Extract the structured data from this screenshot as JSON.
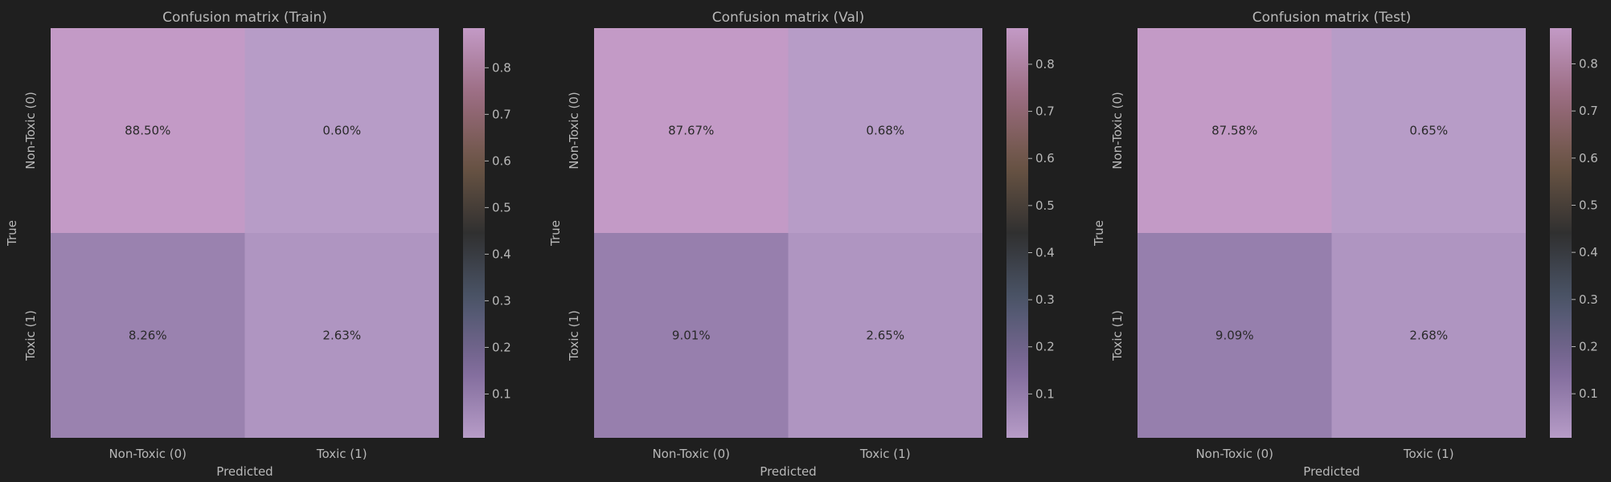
{
  "colors": {
    "background": "#1f1f1f",
    "text": "#b8b8b8",
    "cell_text": "#2a2a2a",
    "colormap": [
      "#b79cc7",
      "#7f6a9a",
      "#4c566a",
      "#303030",
      "#6b5544",
      "#9a6b80",
      "#c39ac6"
    ]
  },
  "chart_data": [
    {
      "type": "heatmap",
      "title": "Confusion matrix (Train)",
      "xlabel": "Predicted",
      "ylabel": "True",
      "x_categories": [
        "Non-Toxic (0)",
        "Toxic (1)"
      ],
      "y_categories": [
        "Non-Toxic (0)",
        "Toxic (1)"
      ],
      "values": [
        [
          0.885,
          0.006
        ],
        [
          0.0826,
          0.0263
        ]
      ],
      "cell_labels": [
        [
          "88.50%",
          "0.60%"
        ],
        [
          "8.26%",
          "2.63%"
        ]
      ],
      "colorbar": {
        "range": [
          0.006,
          0.885
        ],
        "ticks": [
          0.1,
          0.2,
          0.3,
          0.4,
          0.5,
          0.6,
          0.7,
          0.8
        ],
        "tick_labels": [
          "0.1",
          "0.2",
          "0.3",
          "0.4",
          "0.5",
          "0.6",
          "0.7",
          "0.8"
        ]
      }
    },
    {
      "type": "heatmap",
      "title": "Confusion matrix (Val)",
      "xlabel": "Predicted",
      "ylabel": "True",
      "x_categories": [
        "Non-Toxic (0)",
        "Toxic (1)"
      ],
      "y_categories": [
        "Non-Toxic (0)",
        "Toxic (1)"
      ],
      "values": [
        [
          0.8767,
          0.0068
        ],
        [
          0.0901,
          0.0265
        ]
      ],
      "cell_labels": [
        [
          "87.67%",
          "0.68%"
        ],
        [
          "9.01%",
          "2.65%"
        ]
      ],
      "colorbar": {
        "range": [
          0.0068,
          0.8767
        ],
        "ticks": [
          0.1,
          0.2,
          0.3,
          0.4,
          0.5,
          0.6,
          0.7,
          0.8
        ],
        "tick_labels": [
          "0.1",
          "0.2",
          "0.3",
          "0.4",
          "0.5",
          "0.6",
          "0.7",
          "0.8"
        ]
      }
    },
    {
      "type": "heatmap",
      "title": "Confusion matrix (Test)",
      "xlabel": "Predicted",
      "ylabel": "True",
      "x_categories": [
        "Non-Toxic (0)",
        "Toxic (1)"
      ],
      "y_categories": [
        "Non-Toxic (0)",
        "Toxic (1)"
      ],
      "values": [
        [
          0.8758,
          0.0065
        ],
        [
          0.0909,
          0.0268
        ]
      ],
      "cell_labels": [
        [
          "87.58%",
          "0.65%"
        ],
        [
          "9.09%",
          "2.68%"
        ]
      ],
      "colorbar": {
        "range": [
          0.0065,
          0.8758
        ],
        "ticks": [
          0.1,
          0.2,
          0.3,
          0.4,
          0.5,
          0.6,
          0.7,
          0.8
        ],
        "tick_labels": [
          "0.1",
          "0.2",
          "0.3",
          "0.4",
          "0.5",
          "0.6",
          "0.7",
          "0.8"
        ]
      }
    }
  ]
}
